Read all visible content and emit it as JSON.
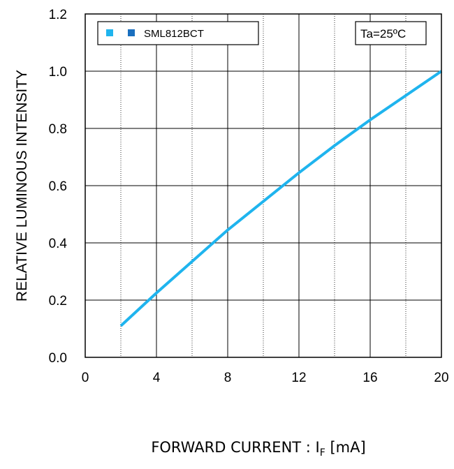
{
  "chart_data": {
    "type": "line",
    "title": "",
    "xlabel": "FORWARD CURRENT : I",
    "xlabel_subscript": "F",
    "xlabel_unit": " [mA]",
    "ylabel": "RELATIVE LUMINOUS INTENSITY",
    "xlim": [
      0,
      20
    ],
    "ylim": [
      0,
      1.2
    ],
    "xticks": [
      0,
      4,
      8,
      12,
      16,
      20
    ],
    "xtick_labels": [
      "0",
      "4",
      "8",
      "12",
      "16",
      "20"
    ],
    "yticks": [
      0,
      0.2,
      0.4,
      0.6,
      0.8,
      1.0,
      1.2
    ],
    "ytick_labels": [
      "0.0",
      "0.2",
      "0.4",
      "0.6",
      "0.8",
      "1.0",
      "1.2"
    ],
    "grid": {
      "major_x": [
        4,
        8,
        12,
        16
      ],
      "minor_x": [
        2,
        6,
        10,
        14,
        18
      ],
      "y": [
        0.2,
        0.4,
        0.6,
        0.8,
        1.0
      ]
    },
    "legend": {
      "placement": "top-left",
      "label": "SML812BCT",
      "swatch_colors": [
        "#1fb4ee",
        "#1a6fbf"
      ]
    },
    "annotation": "Ta=25ºC",
    "series": [
      {
        "name": "SML812BCT",
        "color": "#1fb4ee",
        "x": [
          2,
          4,
          6,
          8,
          10,
          12,
          14,
          16,
          18,
          20
        ],
        "y": [
          0.11,
          0.225,
          0.335,
          0.445,
          0.545,
          0.645,
          0.74,
          0.83,
          0.915,
          1.0
        ]
      }
    ]
  }
}
